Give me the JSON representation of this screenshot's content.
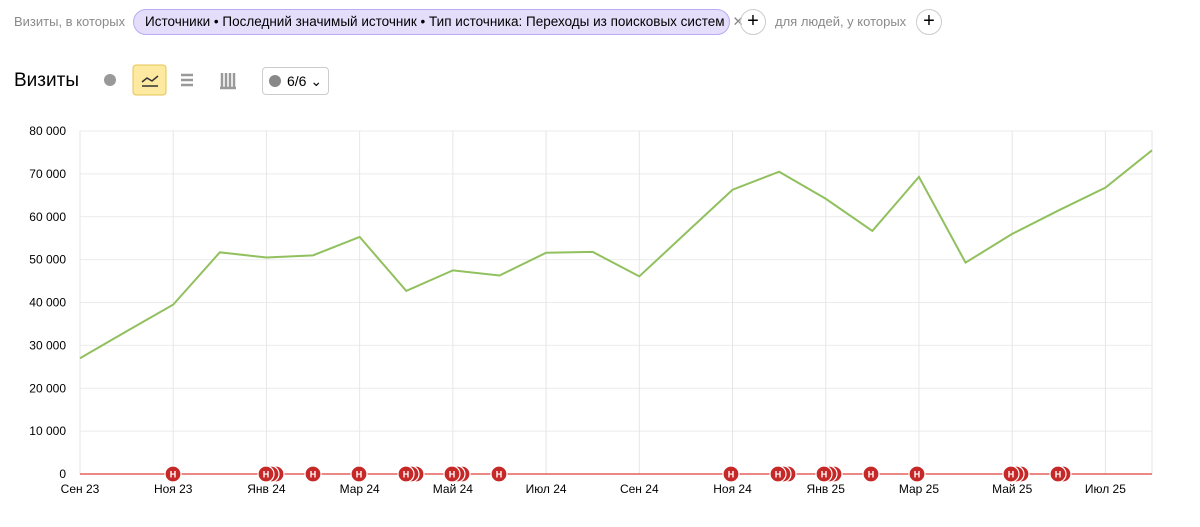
{
  "filter": {
    "prefix": "Визиты, в которых",
    "condition": "Источники • Последний значимый источник • Тип источника: Переходы из поисковых систем",
    "people": "для людей, у которых"
  },
  "toolbar": {
    "title": "Визиты",
    "annotations_count": "6/6"
  },
  "chart_data": {
    "type": "line",
    "categories": [
      "Сен 23",
      null,
      "Ноя 23",
      null,
      "Янв 24",
      null,
      "Мар 24",
      null,
      "Май 24",
      null,
      "Июл 24",
      null,
      "Сен 24",
      null,
      "Ноя 24",
      null,
      "Янв 25",
      null,
      "Мар 25",
      null,
      "Май 25",
      null,
      "Июл 25",
      null
    ],
    "series": [
      {
        "name": "Визиты",
        "color": "#91c05e",
        "values": [
          27000,
          33300,
          39500,
          51700,
          50500,
          51000,
          55300,
          42700,
          47500,
          46300,
          51600,
          51800,
          46100,
          56200,
          66300,
          70500,
          64200,
          56700,
          69300,
          49300,
          56000,
          61500,
          66800,
          75500
        ]
      }
    ],
    "ylim": [
      0,
      80000
    ],
    "yticks": [
      0,
      {
        "value": 10000,
        "label": "10 000"
      },
      {
        "value": 20000,
        "label": "20 000"
      },
      {
        "value": 30000,
        "label": "30 000"
      },
      {
        "value": 40000,
        "label": "40 000"
      },
      {
        "value": 50000,
        "label": "50 000"
      },
      {
        "value": 60000,
        "label": "60 000"
      },
      {
        "value": 70000,
        "label": "70 000"
      },
      {
        "value": 80000,
        "label": "80 000"
      }
    ],
    "grid": true,
    "annotation_marker": "Н"
  }
}
